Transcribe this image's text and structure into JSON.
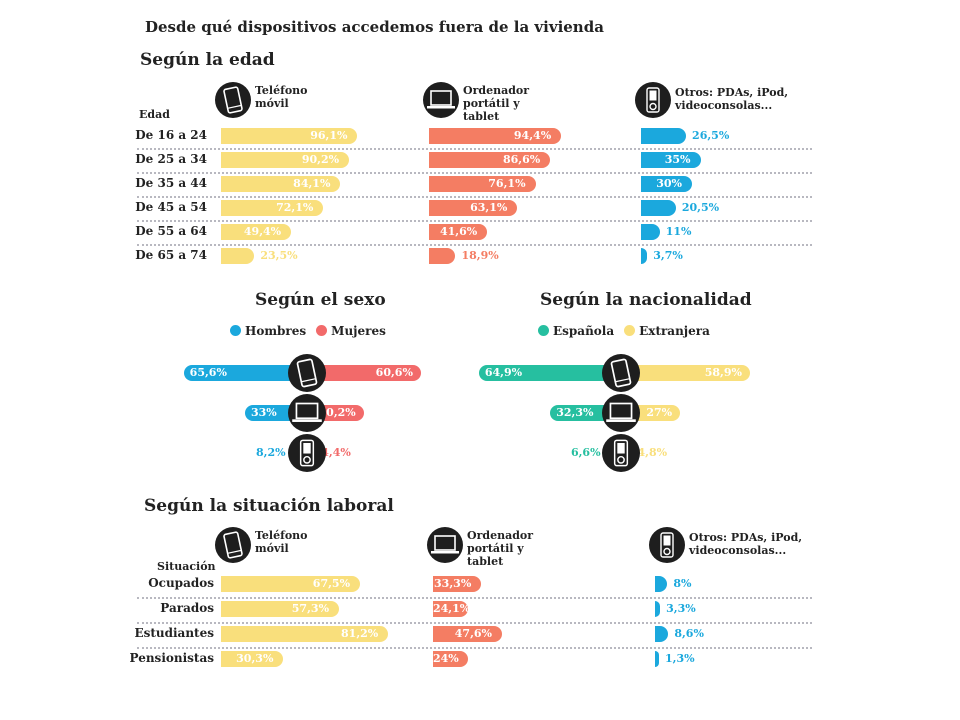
{
  "title": "Desde qué dispositivos accedemos fuera de la vivienda",
  "colors": {
    "phone": "#f9df7c",
    "laptop": "#f47d63",
    "other": "#1ba8dd",
    "hombres": "#1ba8dd",
    "mujeres": "#f26a6a",
    "espanola": "#26bfa0",
    "extranjera": "#f9df7c",
    "icon": "#1e1e1e"
  },
  "icons": {
    "phone": "mobile-phone-icon",
    "laptop": "laptop-icon",
    "other": "ipod-icon"
  },
  "columns": {
    "phone": "Teléfono móvil",
    "phone_lines": [
      "Teléfono",
      "móvil"
    ],
    "laptop_lines": [
      "Ordenador",
      "portátil y",
      "tablet"
    ],
    "other_lines": [
      "Otros: PDAs, iPod,",
      "videoconsolas..."
    ]
  },
  "chart_data": [
    {
      "type": "bar",
      "title": "Según la edad",
      "row_header": "Edad",
      "categories": [
        "De 16 a 24",
        "De 25 a 34",
        "De 35 a 44",
        "De 45 a 54",
        "De 55 a 64",
        "De 65 a 74"
      ],
      "series": [
        {
          "name": "Teléfono móvil",
          "values": [
            96.1,
            90.2,
            84.1,
            72.1,
            49.4,
            23.5
          ],
          "labels": [
            "96,1%",
            "90,2%",
            "84,1%",
            "72,1%",
            "49,4%",
            "23,5%"
          ]
        },
        {
          "name": "Ordenador portátil y tablet",
          "values": [
            94.4,
            86.6,
            76.1,
            63.1,
            41.6,
            18.9
          ],
          "labels": [
            "94,4%",
            "86,6%",
            "76,1%",
            "63,1%",
            "41,6%",
            "18,9%"
          ]
        },
        {
          "name": "Otros: PDAs, iPod, videoconsolas...",
          "values": [
            26.5,
            35,
            30,
            20.5,
            11,
            3.7
          ],
          "labels": [
            "26,5%",
            "35%",
            "30%",
            "20,5%",
            "11%",
            "3,7%"
          ]
        }
      ],
      "unit": "%"
    },
    {
      "type": "bar",
      "title": "Según el sexo",
      "legend": [
        "Hombres",
        "Mujeres"
      ],
      "categories": [
        "Teléfono móvil",
        "Ordenador portátil y tablet",
        "Otros"
      ],
      "series": [
        {
          "name": "Hombres",
          "values": [
            65.6,
            33,
            8.2
          ],
          "labels": [
            "65,6%",
            "33%",
            "8,2%"
          ]
        },
        {
          "name": "Mujeres",
          "values": [
            60.6,
            30.2,
            4.4
          ],
          "labels": [
            "60,6%",
            "30,2%",
            "4,4%"
          ]
        }
      ],
      "unit": "%"
    },
    {
      "type": "bar",
      "title": "Según la nacionalidad",
      "legend": [
        "Española",
        "Extranjera"
      ],
      "categories": [
        "Teléfono móvil",
        "Ordenador portátil y tablet",
        "Otros"
      ],
      "series": [
        {
          "name": "Española",
          "values": [
            64.9,
            32.3,
            6.6
          ],
          "labels": [
            "64,9%",
            "32,3%",
            "6,6%"
          ]
        },
        {
          "name": "Extranjera",
          "values": [
            58.9,
            27,
            4.8
          ],
          "labels": [
            "58,9%",
            "27%",
            "4,8%"
          ]
        }
      ],
      "unit": "%"
    },
    {
      "type": "bar",
      "title": "Según la situación laboral",
      "row_header": "Situación",
      "categories": [
        "Ocupados",
        "Parados",
        "Estudiantes",
        "Pensionistas"
      ],
      "series": [
        {
          "name": "Teléfono móvil",
          "values": [
            67.5,
            57.3,
            81.2,
            30.3
          ],
          "labels": [
            "67,5%",
            "57,3%",
            "81,2%",
            "30,3%"
          ]
        },
        {
          "name": "Ordenador portátil y tablet",
          "values": [
            33.3,
            24.1,
            47.6,
            24
          ],
          "labels": [
            "33,3%",
            "24,1%",
            "47,6%",
            "24%"
          ]
        },
        {
          "name": "Otros: PDAs, iPod, videoconsolas...",
          "values": [
            8,
            3.3,
            8.6,
            1.3
          ],
          "labels": [
            "8%",
            "3,3%",
            "8,6%",
            "1,3%"
          ]
        }
      ],
      "unit": "%"
    }
  ]
}
